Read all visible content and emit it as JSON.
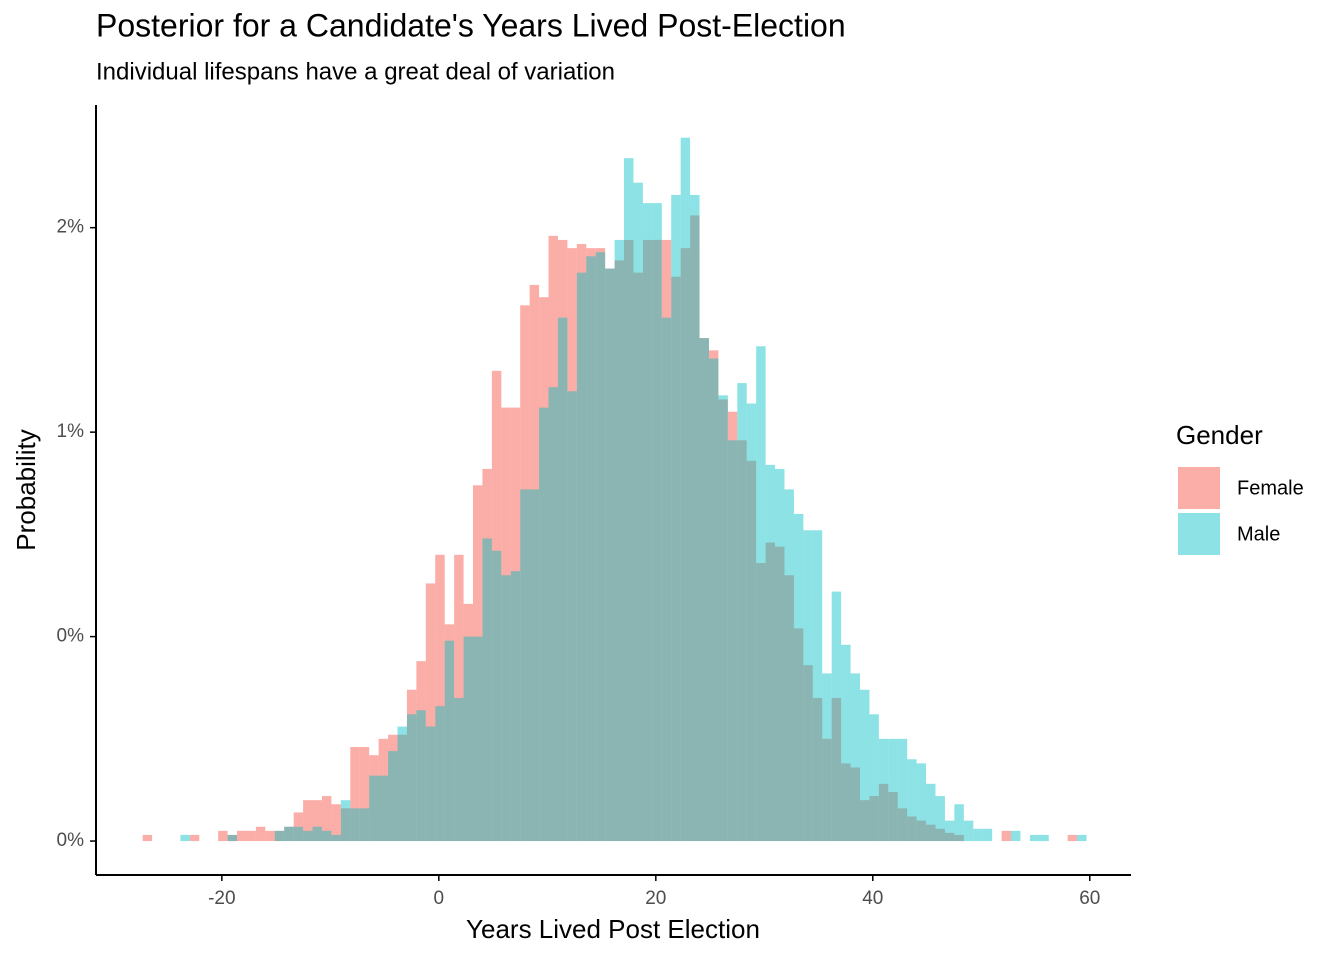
{
  "chart_data": {
    "type": "histogram",
    "title": "Posterior for a Candidate's Years Lived Post-Election",
    "subtitle": "Individual lifespans have a great deal of variation",
    "x_label": "Years Lived Post Election",
    "y_label": "Probability",
    "legend_title": "Gender",
    "bins": [
      -27.3,
      -26.43,
      -25.56,
      -24.69,
      -23.82,
      -22.95,
      -22.08,
      -21.21,
      -20.34,
      -19.47,
      -18.6,
      -17.73,
      -16.86,
      -15.99,
      -15.12,
      -14.25,
      -13.38,
      -12.51,
      -11.64,
      -10.77,
      -9.9,
      -9.03,
      -8.16,
      -7.29,
      -6.42,
      -5.55,
      -4.68,
      -3.81,
      -2.94,
      -2.07,
      -1.2,
      -0.33,
      0.54,
      1.41,
      2.28,
      3.15,
      4.02,
      4.89,
      5.76,
      6.63,
      7.5,
      8.37,
      9.24,
      10.11,
      10.98,
      11.85,
      12.72,
      13.59,
      14.46,
      15.33,
      16.2,
      17.07,
      17.94,
      18.81,
      19.68,
      20.55,
      21.42,
      22.29,
      23.16,
      24.03,
      24.9,
      25.77,
      26.64,
      27.51,
      28.38,
      29.25,
      30.12,
      30.99,
      31.86,
      32.73,
      33.6,
      34.47,
      35.34,
      36.21,
      37.08,
      37.95,
      38.82,
      39.69,
      40.56,
      41.43,
      42.3,
      43.17,
      44.04,
      44.91,
      45.78,
      46.65,
      47.52,
      48.39,
      49.26,
      50.13,
      51.0,
      51.87,
      52.74,
      53.61,
      54.48,
      55.35,
      56.22,
      57.09,
      57.96,
      58.83,
      59.7
    ],
    "series": [
      {
        "name": "Female",
        "color": "#F8766D",
        "values": [
          0.015,
          0,
          0,
          0,
          0,
          0.015,
          0,
          0,
          0.025,
          0.015,
          0.025,
          0.025,
          0.035,
          0.025,
          0.025,
          0.035,
          0.07,
          0.1,
          0.1,
          0.11,
          0.09,
          0.08,
          0.23,
          0.23,
          0.21,
          0.25,
          0.26,
          0.26,
          0.37,
          0.44,
          0.63,
          0.7,
          0.53,
          0.7,
          0.58,
          0.87,
          0.91,
          1.15,
          1.06,
          1.06,
          1.31,
          1.36,
          1.33,
          1.48,
          1.47,
          1.45,
          1.46,
          1.45,
          1.45,
          1.4,
          1.42,
          1.47,
          1.39,
          1.47,
          1.47,
          1.47,
          1.38,
          1.45,
          1.53,
          1.23,
          1.2,
          1.08,
          1.05,
          0.98,
          0.93,
          0.68,
          0.73,
          0.72,
          0.65,
          0.52,
          0.43,
          0.35,
          0.25,
          0.35,
          0.19,
          0.18,
          0.1,
          0.11,
          0.14,
          0.12,
          0.08,
          0.06,
          0.05,
          0.04,
          0.03,
          0.02,
          0.015,
          0,
          0,
          0,
          0,
          0.025,
          0,
          0,
          0,
          0,
          0,
          0,
          0.015,
          0
        ]
      },
      {
        "name": "Male",
        "color": "#00BFC4",
        "values": [
          0,
          0,
          0,
          0,
          0.015,
          0,
          0,
          0,
          0,
          0.015,
          0,
          0,
          0,
          0,
          0.025,
          0.035,
          0.035,
          0.025,
          0.035,
          0.025,
          0.015,
          0.1,
          0.08,
          0.08,
          0.16,
          0.16,
          0.22,
          0.28,
          0.31,
          0.32,
          0.28,
          0.33,
          0.49,
          0.35,
          0.5,
          0.5,
          0.74,
          0.71,
          0.65,
          0.66,
          0.86,
          0.86,
          1.06,
          1.11,
          1.28,
          1.1,
          1.39,
          1.43,
          1.44,
          1.4,
          1.47,
          1.67,
          1.61,
          1.56,
          1.56,
          1.28,
          1.58,
          1.72,
          1.58,
          1.23,
          1.18,
          1.09,
          0.98,
          1.12,
          1.07,
          1.21,
          0.92,
          0.91,
          0.86,
          0.8,
          0.76,
          0.76,
          0.41,
          0.61,
          0.48,
          0.41,
          0.37,
          0.31,
          0.25,
          0.25,
          0.25,
          0.2,
          0.19,
          0.14,
          0.11,
          0.05,
          0.09,
          0.05,
          0.03,
          0.03,
          0,
          0,
          0.025,
          0,
          0.015,
          0.015,
          0,
          0,
          0,
          0.015
        ]
      }
    ],
    "xlim": [
      -31.6,
      63.8
    ],
    "xticks": [
      -20,
      0,
      20,
      40,
      60
    ],
    "ylim": [
      -0.083,
      1.8
    ],
    "yticks": [
      {
        "value": 0,
        "label": "0%"
      },
      {
        "value": 0.5,
        "label": "0%"
      },
      {
        "value": 1,
        "label": "1%"
      },
      {
        "value": 1.5,
        "label": "2%"
      }
    ],
    "grid": false
  }
}
